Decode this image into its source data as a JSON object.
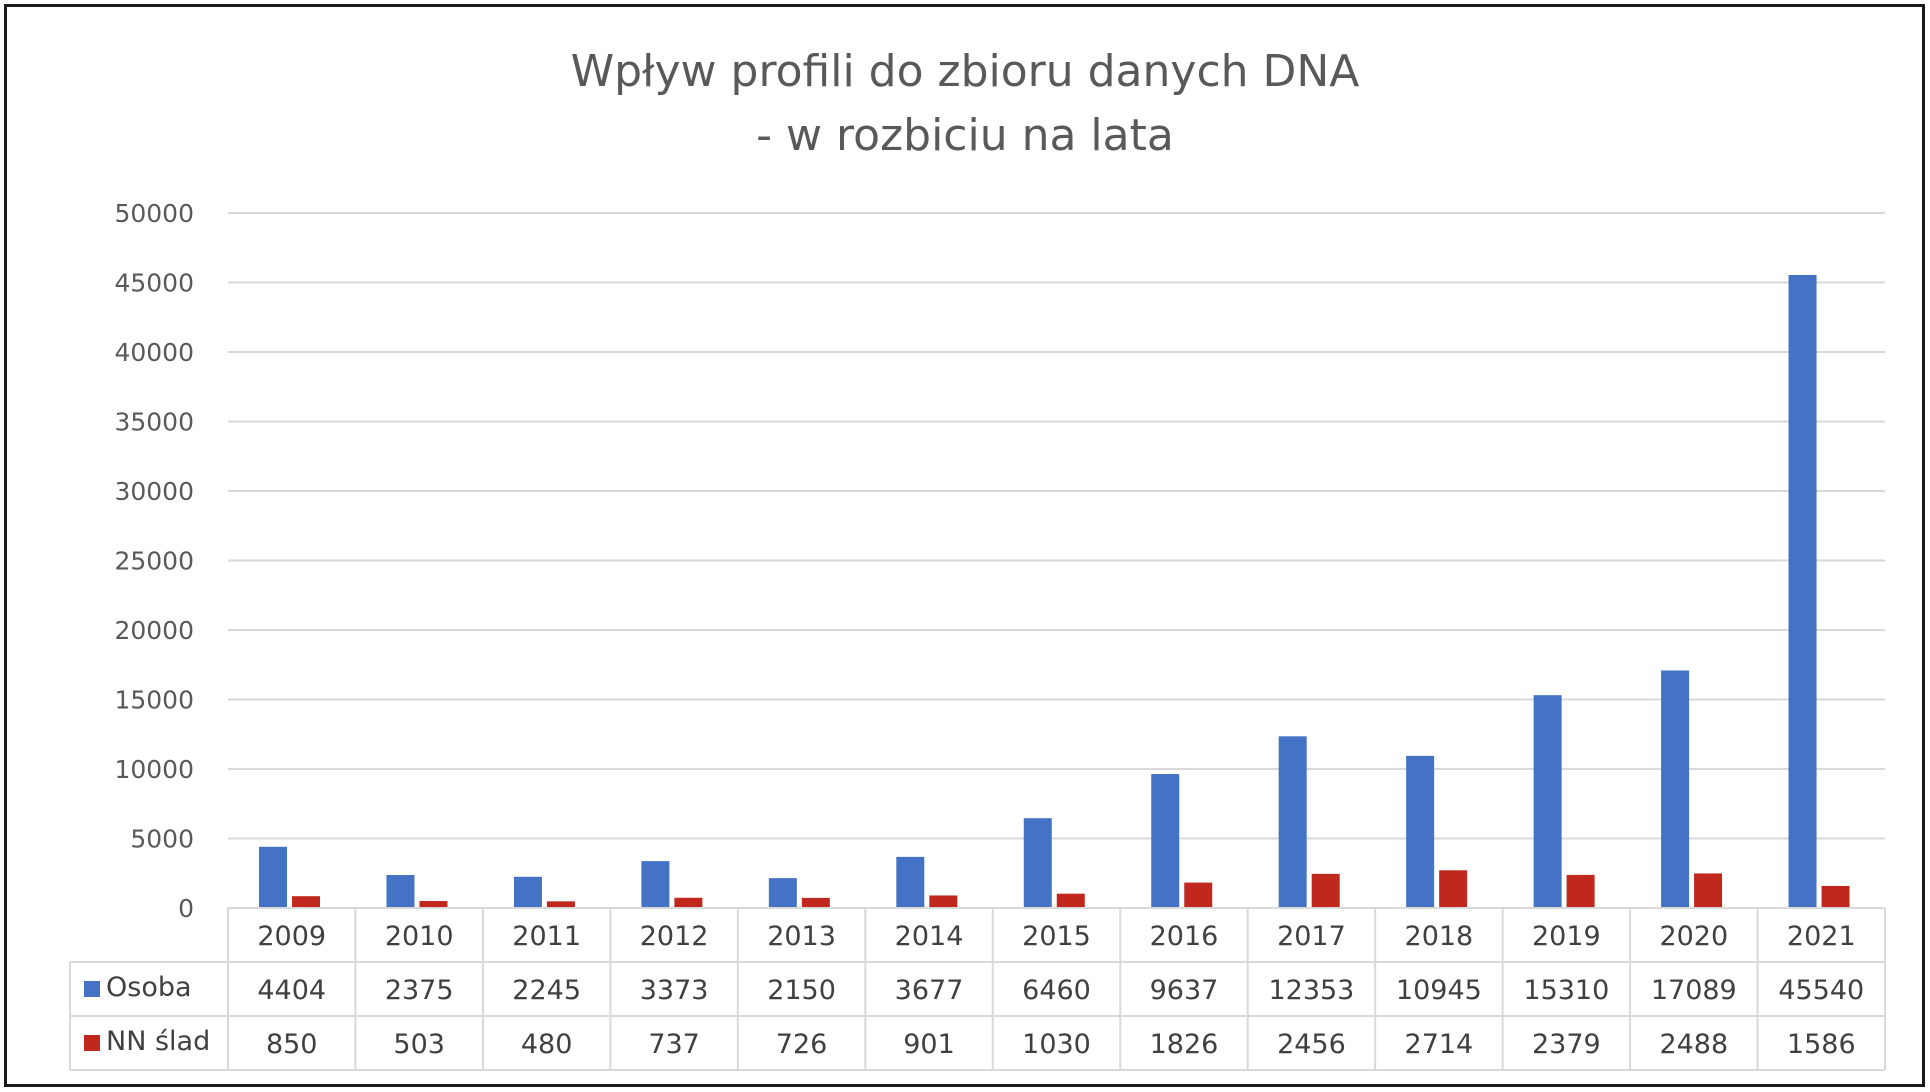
{
  "chart_data": {
    "type": "bar",
    "title_lines": [
      "Wpływ profili do zbioru danych DNA",
      "- w rozbiciu na lata"
    ],
    "categories": [
      "2009",
      "2010",
      "2011",
      "2012",
      "2013",
      "2014",
      "2015",
      "2016",
      "2017",
      "2018",
      "2019",
      "2020",
      "2021"
    ],
    "series": [
      {
        "name": "Osoba",
        "color": "#4472C4",
        "values": [
          4404,
          2375,
          2245,
          3373,
          2150,
          3677,
          6460,
          9637,
          12353,
          10945,
          15310,
          17089,
          45540
        ]
      },
      {
        "name": "NN ślad",
        "color": "#C0281E",
        "values": [
          850,
          503,
          480,
          737,
          726,
          901,
          1030,
          1826,
          2456,
          2714,
          2379,
          2488,
          1586
        ]
      }
    ],
    "ylim": [
      0,
      50000
    ],
    "yticks": [
      0,
      5000,
      10000,
      15000,
      20000,
      25000,
      30000,
      35000,
      40000,
      45000,
      50000
    ],
    "grid": true,
    "legend": "data-table",
    "xlabel": "",
    "ylabel": ""
  }
}
